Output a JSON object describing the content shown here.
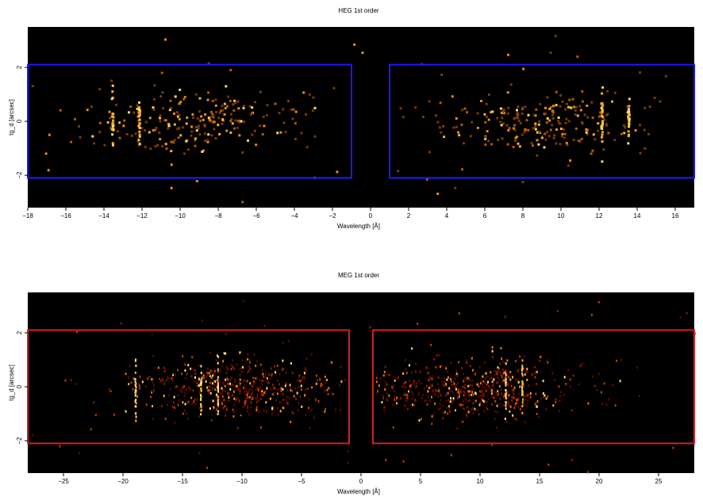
{
  "chart_data": [
    {
      "type": "heatmap",
      "title": "HEG 1st order",
      "xlabel": "Wavelength [Å]",
      "ylabel": "tg_d [arcsec]",
      "xlim": [
        -18,
        17
      ],
      "ylim": [
        -3.2,
        3.5
      ],
      "x_ticks": [
        -18,
        -16,
        -14,
        -12,
        -10,
        -8,
        -6,
        -4,
        -2,
        0,
        2,
        4,
        6,
        8,
        10,
        12,
        14,
        16
      ],
      "y_ticks": [
        -2,
        0,
        2
      ],
      "grid": false,
      "background": "#000000",
      "region_color": "#1a1aff",
      "regions": [
        {
          "x": [
            -18,
            -1
          ],
          "y": [
            -2.1,
            2.1
          ]
        },
        {
          "x": [
            1,
            17
          ],
          "y": [
            -2.1,
            2.1
          ]
        }
      ],
      "ridges": [
        -13.6,
        -12.2,
        12.1,
        13.5
      ],
      "clusters": [
        {
          "center": -9,
          "sigma": 3.0
        },
        {
          "center": 9,
          "sigma": 3.0
        }
      ]
    },
    {
      "type": "heatmap",
      "title": "MEG 1st order",
      "xlabel": "Wavelength [Å]",
      "ylabel": "tg_d [arcsec]",
      "xlim": [
        -28,
        28
      ],
      "ylim": [
        -3.2,
        3.5
      ],
      "x_ticks": [
        -25,
        -20,
        -15,
        -10,
        -5,
        0,
        5,
        10,
        15,
        20,
        25
      ],
      "y_ticks": [
        -2,
        0,
        2
      ],
      "grid": false,
      "background": "#000000",
      "region_color": "#d42020",
      "regions": [
        {
          "x": [
            -28,
            -1
          ],
          "y": [
            -2.1,
            2.1
          ]
        },
        {
          "x": [
            1,
            28
          ],
          "y": [
            -2.1,
            2.1
          ]
        }
      ],
      "ridges": [
        -19,
        -13.5,
        -12.1,
        12.1,
        13.5
      ],
      "clusters": [
        {
          "center": -10,
          "sigma": 4.5
        },
        {
          "center": 9,
          "sigma": 4.5
        }
      ]
    }
  ]
}
